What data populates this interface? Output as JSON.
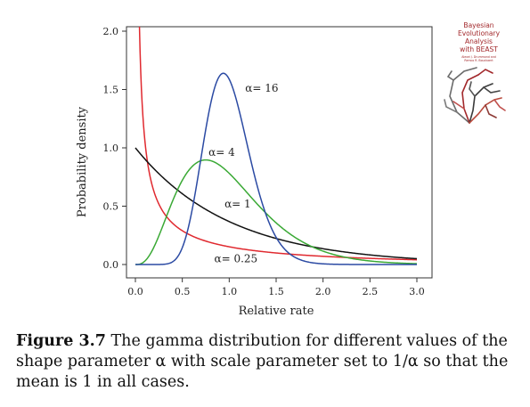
{
  "chart_data": {
    "type": "line",
    "title": "",
    "xlabel": "Relative rate",
    "ylabel": "Probability density",
    "xlim": [
      0,
      3
    ],
    "ylim": [
      0,
      2
    ],
    "x_ticks": [
      "0.0",
      "0.5",
      "1.0",
      "1.5",
      "2.0",
      "2.5",
      "3.0"
    ],
    "y_ticks": [
      "0.0",
      "0.5",
      "1.0",
      "1.5",
      "2.0"
    ],
    "grid": false,
    "distribution": "gamma (scale = 1/alpha, mean = 1)",
    "series": [
      {
        "name": "α= 0.25",
        "alpha": 0.25,
        "color": "#e0292f",
        "x": [
          0.02,
          0.05,
          0.1,
          0.2,
          0.3,
          0.5,
          0.75,
          1.0,
          1.5,
          2.0,
          2.5,
          3.0
        ],
        "y": [
          2.01,
          1.12,
          0.64,
          0.36,
          0.25,
          0.15,
          0.1,
          0.07,
          0.05,
          0.03,
          0.02,
          0.01
        ]
      },
      {
        "name": "α= 1",
        "alpha": 1,
        "color": "#111111",
        "x": [
          0.0,
          0.25,
          0.5,
          0.75,
          1.0,
          1.5,
          2.0,
          2.5,
          3.0
        ],
        "y": [
          1.0,
          0.78,
          0.61,
          0.47,
          0.37,
          0.22,
          0.14,
          0.08,
          0.05
        ]
      },
      {
        "name": "α= 4",
        "alpha": 4,
        "color": "#3aa935",
        "x": [
          0.0,
          0.2,
          0.4,
          0.6,
          0.75,
          0.9,
          1.0,
          1.25,
          1.5,
          1.75,
          2.0,
          2.5,
          3.0
        ],
        "y": [
          0.0,
          0.24,
          0.65,
          0.87,
          0.9,
          0.86,
          0.78,
          0.56,
          0.36,
          0.21,
          0.12,
          0.03,
          0.01
        ]
      },
      {
        "name": "α= 16",
        "alpha": 16,
        "color": "#2b4aa3",
        "x": [
          0.0,
          0.4,
          0.6,
          0.8,
          0.94,
          1.0,
          1.2,
          1.4,
          1.6,
          1.8,
          2.0
        ],
        "y": [
          0.0,
          0.03,
          0.36,
          1.31,
          1.63,
          1.59,
          0.94,
          0.32,
          0.07,
          0.01,
          0.0
        ]
      }
    ]
  },
  "caption": {
    "label": "Figure 3.7",
    "text": " The gamma distribution for different values of the shape parameter α with scale parameter set to 1/α so that the mean is 1 in all cases."
  },
  "book": {
    "title_lines": [
      "Bayesian",
      "Evolutionary",
      "Analysis",
      "with BEAST"
    ],
    "authors": [
      "Alexei J. Drummond and",
      "Remco R. Bouckaert"
    ],
    "accent_color": "#a2282b"
  }
}
